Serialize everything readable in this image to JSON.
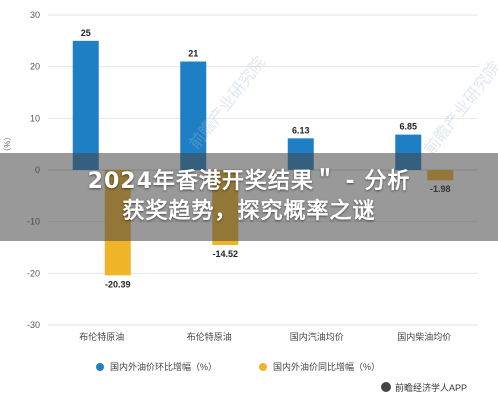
{
  "chart_data": {
    "type": "bar",
    "categories": [
      "布伦特原油",
      "布伦特原油",
      "国内汽油均价",
      "国内柴油均价"
    ],
    "series": [
      {
        "name": "国内外油价环比增幅（%）",
        "color": "#1f7fc4",
        "values": [
          25,
          21,
          6.13,
          6.85
        ]
      },
      {
        "name": "国内外油价同比增幅（%）",
        "color": "#f0b429",
        "values": [
          -20.39,
          -14.52,
          null,
          -1.98
        ]
      }
    ],
    "data_labels": [
      [
        "25",
        "21",
        "6.13",
        "6.85"
      ],
      [
        "-20.39",
        "-14.52",
        "",
        "-1.98"
      ]
    ],
    "yticks": [
      30,
      20,
      10,
      0,
      -10,
      -20,
      -30
    ],
    "ylim": [
      -30,
      30
    ],
    "ylabel": "（%）",
    "grid": true,
    "legend_position": "bottom"
  },
  "overlay": {
    "line1": "2024年香港开奖结果＂ - 分析",
    "line2": "获奖趋势，探究概率之谜"
  },
  "watermark": "前瞻产业研究院",
  "source": "前瞻经济学人APP"
}
